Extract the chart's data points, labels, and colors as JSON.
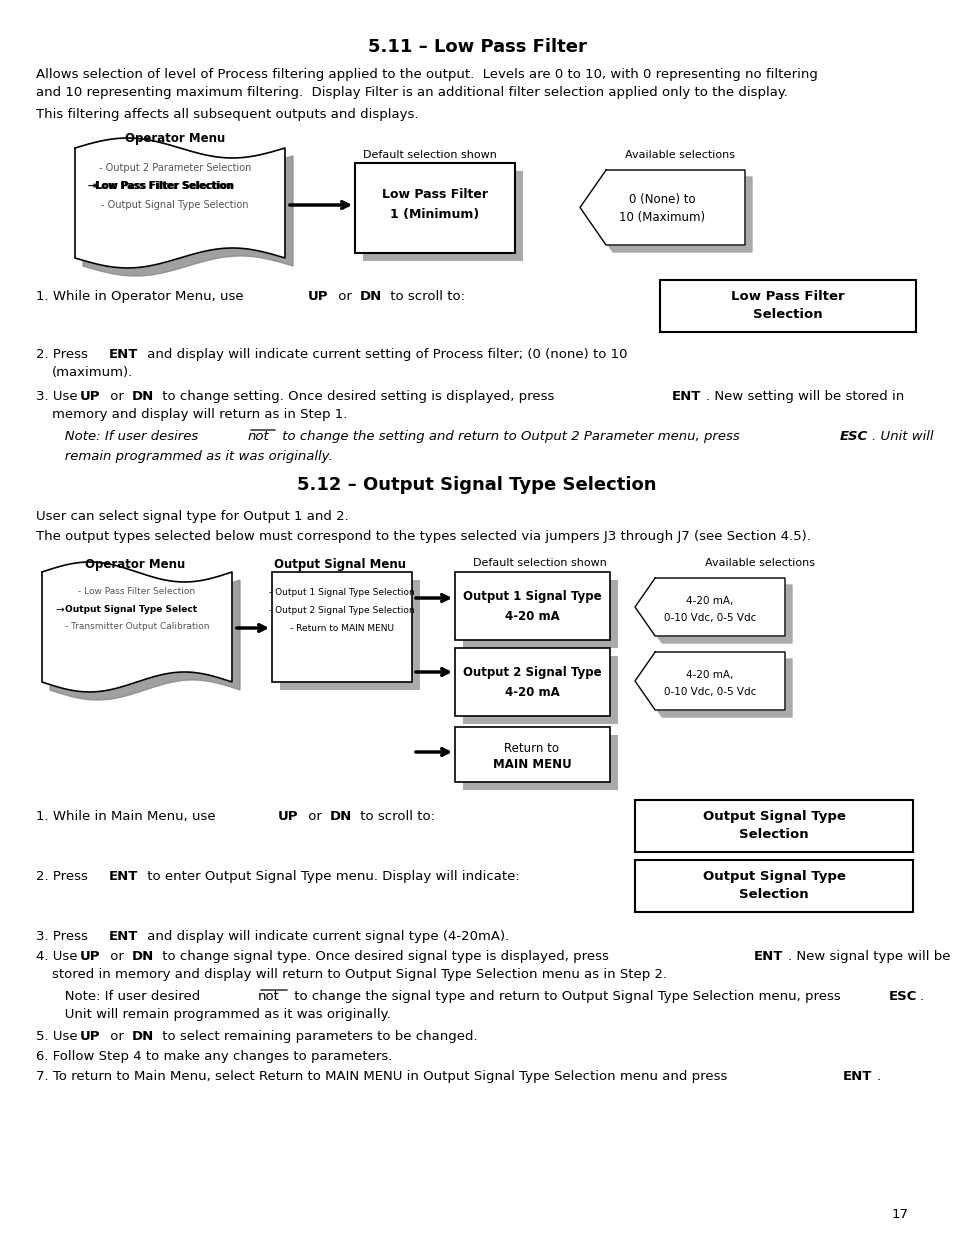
{
  "title1": "5.11 – Low Pass Filter",
  "title2": "5.12 – Output Signal Type Selection",
  "bg_color": "#ffffff",
  "page_number": "17"
}
